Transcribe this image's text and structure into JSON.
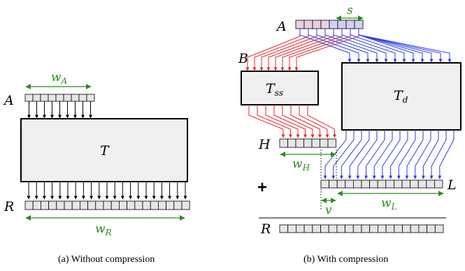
{
  "colors": {
    "green": "#2e8b1f",
    "red": "#e8262b",
    "blue": "#2a3ee6",
    "cell": "#e6e6e6",
    "box": "#f0f0f0",
    "pinkCell": "#e8cfe6",
    "violetCell": "#d4d0f2"
  },
  "left": {
    "input_label": "A",
    "width_label": "w",
    "width_sub": "A",
    "block_label": "T",
    "output_label": "R",
    "output_width_label": "w",
    "output_width_sub": "R",
    "caption": "(a) Without compression"
  },
  "right": {
    "input_label": "A",
    "shift_label": "s",
    "branch_label": "B",
    "sparse_block": "T",
    "sparse_sub": "ss",
    "dense_block": "T",
    "dense_sub": "d",
    "high_label": "H",
    "high_width": "w",
    "high_sub": "H",
    "plus": "+",
    "low_label": "L",
    "low_width": "w",
    "low_sub": "L",
    "offset_label": "v",
    "result_label": "R",
    "caption": "(b) With compression"
  }
}
